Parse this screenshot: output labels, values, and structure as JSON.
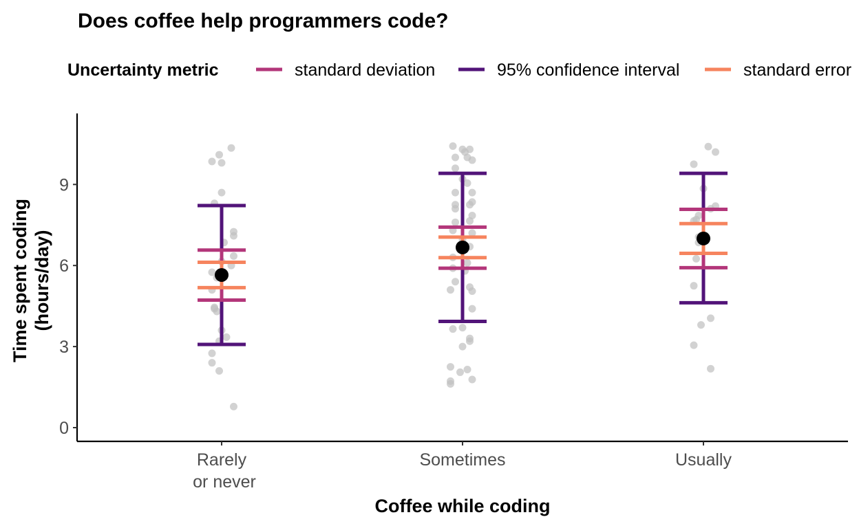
{
  "chart_data": {
    "type": "scatter",
    "title": "Does coffee help programmers code?",
    "xlabel": "Coffee while coding",
    "ylabel": [
      "Time spent coding",
      "(hours/day)"
    ],
    "categories": [
      [
        "Rarely",
        "or never"
      ],
      [
        "Sometimes"
      ],
      [
        "Usually"
      ]
    ],
    "ylim": [
      -0.5,
      11.5
    ],
    "yticks": [
      0,
      3,
      6,
      9
    ],
    "grid": false,
    "legend": {
      "title": "Uncertainty metric",
      "position": "top",
      "items": [
        {
          "label": "standard deviation",
          "color": "#b3367a"
        },
        {
          "label": "95% confidence interval",
          "color": "#521479"
        },
        {
          "label": "standard error",
          "color": "#f6845e"
        }
      ]
    },
    "colors": {
      "points": "#bfbfbf",
      "mean": "#000000"
    },
    "summary": [
      {
        "category": "Rarely or never",
        "mean": 5.65,
        "sd": [
          4.72,
          6.57
        ],
        "ci95": [
          3.08,
          8.22
        ],
        "se": [
          5.18,
          6.12
        ]
      },
      {
        "category": "Sometimes",
        "mean": 6.67,
        "sd": [
          5.9,
          7.42
        ],
        "ci95": [
          3.93,
          9.41
        ],
        "se": [
          6.29,
          7.05
        ]
      },
      {
        "category": "Usually",
        "mean": 7.0,
        "sd": [
          5.92,
          8.08
        ],
        "ci95": [
          4.62,
          9.41
        ],
        "se": [
          6.45,
          7.55
        ]
      }
    ],
    "raw_points": [
      [
        {
          "dx": 0.04,
          "y": 10.35
        },
        {
          "dx": -0.01,
          "y": 10.1
        },
        {
          "dx": -0.04,
          "y": 9.85
        },
        {
          "dx": 0.0,
          "y": 9.8
        },
        {
          "dx": 0.0,
          "y": 8.7
        },
        {
          "dx": -0.03,
          "y": 8.3
        },
        {
          "dx": 0.05,
          "y": 7.25
        },
        {
          "dx": 0.05,
          "y": 7.1
        },
        {
          "dx": 0.01,
          "y": 6.85
        },
        {
          "dx": 0.05,
          "y": 6.35
        },
        {
          "dx": 0.0,
          "y": 6.15
        },
        {
          "dx": 0.04,
          "y": 6.0
        },
        {
          "dx": -0.04,
          "y": 5.75
        },
        {
          "dx": -0.02,
          "y": 5.55
        },
        {
          "dx": -0.04,
          "y": 5.1
        },
        {
          "dx": -0.03,
          "y": 4.45
        },
        {
          "dx": -0.02,
          "y": 4.3
        },
        {
          "dx": -0.03,
          "y": 4.4
        },
        {
          "dx": 0.0,
          "y": 3.6
        },
        {
          "dx": 0.02,
          "y": 3.35
        },
        {
          "dx": -0.01,
          "y": 3.2
        },
        {
          "dx": -0.04,
          "y": 2.75
        },
        {
          "dx": -0.04,
          "y": 2.4
        },
        {
          "dx": -0.01,
          "y": 2.1
        },
        {
          "dx": 0.05,
          "y": 0.78
        }
      ],
      [
        {
          "dx": -0.04,
          "y": 10.42
        },
        {
          "dx": 0.0,
          "y": 10.3
        },
        {
          "dx": 0.03,
          "y": 10.3
        },
        {
          "dx": 0.01,
          "y": 10.2
        },
        {
          "dx": -0.03,
          "y": 10.0
        },
        {
          "dx": 0.02,
          "y": 10.0
        },
        {
          "dx": 0.04,
          "y": 9.9
        },
        {
          "dx": -0.03,
          "y": 9.6
        },
        {
          "dx": 0.0,
          "y": 9.2
        },
        {
          "dx": 0.02,
          "y": 9.05
        },
        {
          "dx": -0.03,
          "y": 8.7
        },
        {
          "dx": 0.04,
          "y": 8.7
        },
        {
          "dx": 0.04,
          "y": 8.35
        },
        {
          "dx": -0.03,
          "y": 8.25
        },
        {
          "dx": 0.03,
          "y": 8.25
        },
        {
          "dx": -0.03,
          "y": 8.1
        },
        {
          "dx": 0.04,
          "y": 7.85
        },
        {
          "dx": 0.03,
          "y": 7.65
        },
        {
          "dx": -0.03,
          "y": 7.6
        },
        {
          "dx": -0.04,
          "y": 7.3
        },
        {
          "dx": 0.04,
          "y": 7.2
        },
        {
          "dx": 0.0,
          "y": 6.95
        },
        {
          "dx": 0.03,
          "y": 6.7
        },
        {
          "dx": -0.04,
          "y": 6.3
        },
        {
          "dx": 0.02,
          "y": 6.1
        },
        {
          "dx": -0.04,
          "y": 5.9
        },
        {
          "dx": 0.01,
          "y": 5.8
        },
        {
          "dx": -0.03,
          "y": 5.4
        },
        {
          "dx": 0.03,
          "y": 5.2
        },
        {
          "dx": -0.05,
          "y": 5.1
        },
        {
          "dx": 0.04,
          "y": 5.05
        },
        {
          "dx": 0.04,
          "y": 4.4
        },
        {
          "dx": 0.0,
          "y": 3.7
        },
        {
          "dx": -0.04,
          "y": 3.65
        },
        {
          "dx": 0.03,
          "y": 3.3
        },
        {
          "dx": 0.03,
          "y": 3.2
        },
        {
          "dx": 0.0,
          "y": 3.0
        },
        {
          "dx": -0.05,
          "y": 2.25
        },
        {
          "dx": 0.02,
          "y": 2.15
        },
        {
          "dx": -0.01,
          "y": 2.05
        },
        {
          "dx": 0.04,
          "y": 1.78
        },
        {
          "dx": -0.05,
          "y": 1.72
        },
        {
          "dx": -0.05,
          "y": 1.62
        }
      ],
      [
        {
          "dx": 0.02,
          "y": 10.4
        },
        {
          "dx": 0.05,
          "y": 10.2
        },
        {
          "dx": -0.04,
          "y": 9.75
        },
        {
          "dx": 0.0,
          "y": 8.85
        },
        {
          "dx": 0.05,
          "y": 8.2
        },
        {
          "dx": 0.03,
          "y": 8.1
        },
        {
          "dx": -0.02,
          "y": 7.85
        },
        {
          "dx": -0.04,
          "y": 7.65
        },
        {
          "dx": -0.03,
          "y": 7.7
        },
        {
          "dx": -0.02,
          "y": 7.05
        },
        {
          "dx": -0.02,
          "y": 6.85
        },
        {
          "dx": -0.03,
          "y": 6.25
        },
        {
          "dx": -0.04,
          "y": 5.25
        },
        {
          "dx": 0.03,
          "y": 4.05
        },
        {
          "dx": -0.01,
          "y": 3.8
        },
        {
          "dx": -0.04,
          "y": 3.05
        },
        {
          "dx": 0.03,
          "y": 2.18
        }
      ]
    ]
  }
}
